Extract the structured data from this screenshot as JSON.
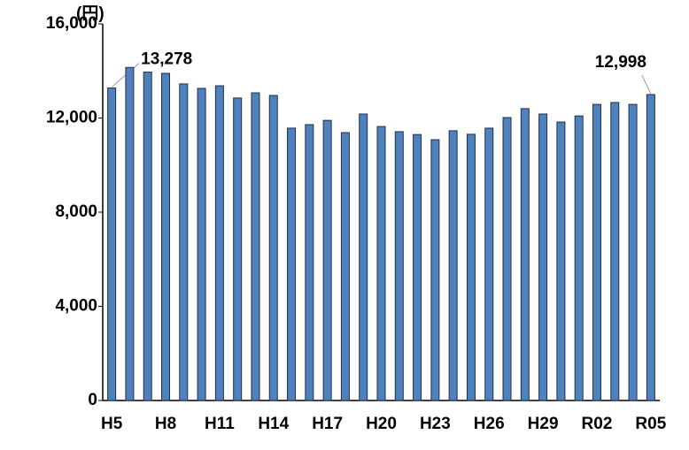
{
  "chart_data": {
    "type": "bar",
    "y_unit": "(円)",
    "categories": [
      "H5",
      null,
      null,
      "H8",
      null,
      null,
      "H11",
      null,
      null,
      "H14",
      null,
      null,
      "H17",
      null,
      null,
      "H20",
      null,
      null,
      "H23",
      null,
      null,
      "H26",
      null,
      null,
      "H29",
      null,
      null,
      "R02",
      null,
      null,
      "R05"
    ],
    "values": [
      13278,
      14150,
      13950,
      13900,
      13450,
      13260,
      13370,
      12850,
      13070,
      12960,
      11570,
      11720,
      11900,
      11380,
      12170,
      11640,
      11420,
      11300,
      11080,
      11460,
      11310,
      11570,
      12020,
      12400,
      12170,
      11830,
      12090,
      12580,
      12660,
      12580,
      12998
    ],
    "value_labels": [
      "13,278",
      null,
      null,
      null,
      null,
      null,
      null,
      null,
      null,
      null,
      null,
      null,
      null,
      null,
      null,
      null,
      null,
      null,
      null,
      null,
      null,
      null,
      null,
      null,
      null,
      null,
      null,
      null,
      null,
      null,
      "12,998"
    ],
    "color": "#4f81bd",
    "ylim": [
      0,
      16000
    ],
    "yticks": [
      0,
      {
        "value": 4000,
        "label": "4,000"
      },
      {
        "value": 8000,
        "label": "8,000"
      },
      {
        "value": 12000,
        "label": "12,000"
      },
      {
        "value": 16000,
        "label": "16,000"
      }
    ]
  }
}
